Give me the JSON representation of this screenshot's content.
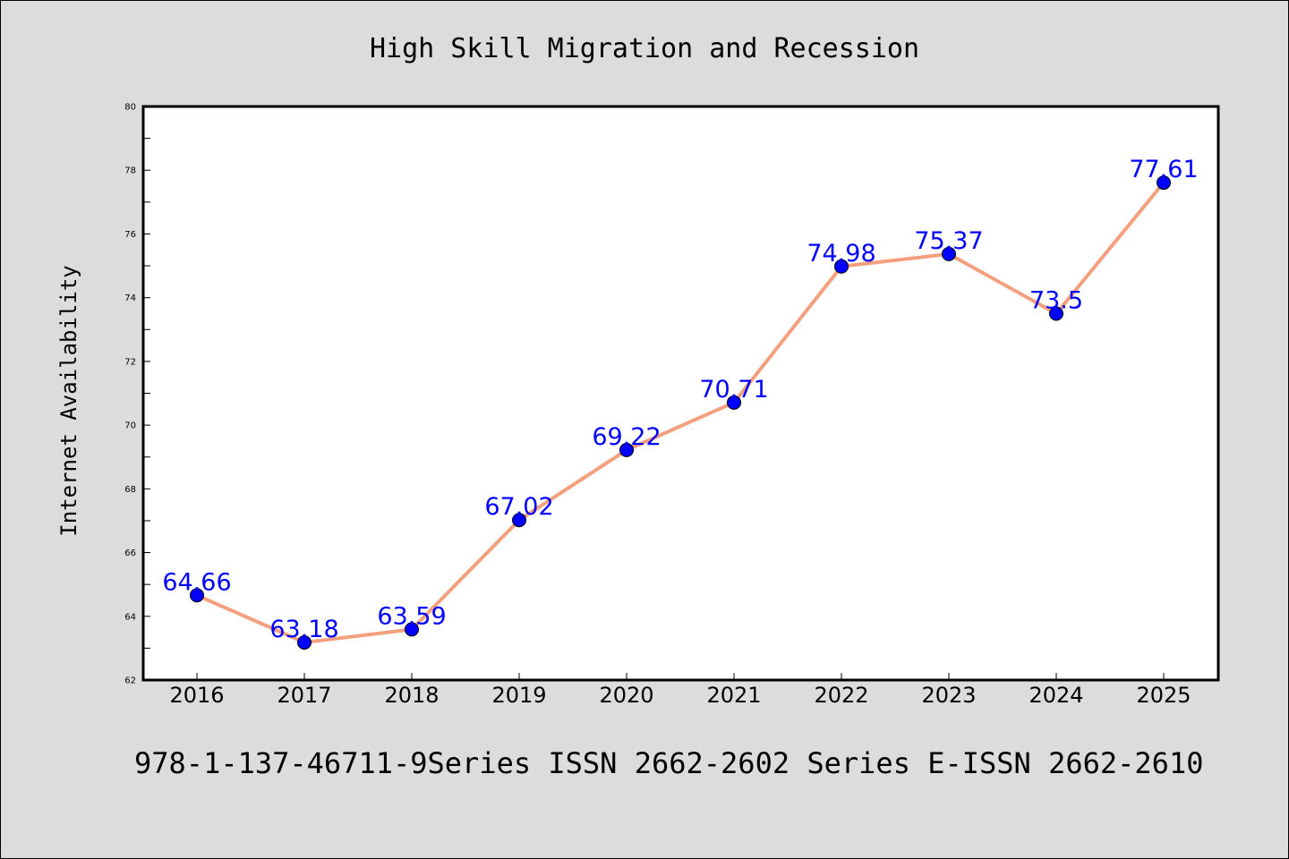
{
  "footer": {
    "text": "978-1-137-46711-9Series ISSN 2662-2602 Series E-ISSN 2662-2610"
  },
  "chart_data": {
    "type": "line",
    "title": "High Skill Migration and Recession",
    "xlabel": "",
    "ylabel": "Internet Availability",
    "categories": [
      "2016",
      "2017",
      "2018",
      "2019",
      "2020",
      "2021",
      "2022",
      "2023",
      "2024",
      "2025"
    ],
    "series": [
      {
        "values": [
          64.66,
          63.18,
          63.59,
          67.02,
          69.22,
          70.71,
          74.98,
          75.37,
          73.5,
          77.61
        ],
        "labels": [
          "64.66",
          "63.18",
          "63.59",
          "67.02",
          "69.22",
          "70.71",
          "74.98",
          "75.37",
          "73.5",
          "77.61"
        ],
        "line_color": "#f4a07e",
        "marker_color": "#0000ff"
      }
    ],
    "ylim": [
      62,
      80
    ],
    "yticks": [
      62,
      64,
      66,
      68,
      70,
      72,
      74,
      76,
      78,
      80
    ],
    "grid": false,
    "legend": "none"
  }
}
